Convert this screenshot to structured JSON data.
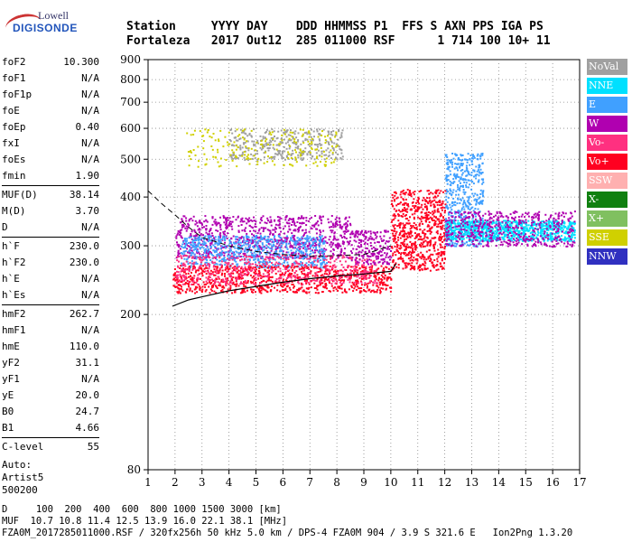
{
  "logo": {
    "line1": "Lowell",
    "line2": "DIGISONDE"
  },
  "header": {
    "labels": "Station     YYYY DAY    DDD HHMMSS P1  FFS S AXN PPS IGA PS",
    "values": "Fortaleza   2017 Out12  285 011000 RSF      1 714 100 10+ 11"
  },
  "params": [
    {
      "name": "foF2",
      "value": "10.300"
    },
    {
      "name": "foF1",
      "value": "N/A"
    },
    {
      "name": "foF1p",
      "value": "N/A"
    },
    {
      "name": "foE",
      "value": "N/A"
    },
    {
      "name": "foEp",
      "value": "0.40"
    },
    {
      "name": "fxI",
      "value": "N/A"
    },
    {
      "name": "foEs",
      "value": "N/A"
    },
    {
      "name": "fmin",
      "value": "1.90"
    },
    {
      "sep": true
    },
    {
      "name": "MUF(D)",
      "value": "38.14"
    },
    {
      "name": "M(D)",
      "value": "3.70"
    },
    {
      "name": "D",
      "value": "N/A"
    },
    {
      "sep": true
    },
    {
      "name": "h`F",
      "value": "230.0"
    },
    {
      "name": "h`F2",
      "value": "230.0"
    },
    {
      "name": "h`E",
      "value": "N/A"
    },
    {
      "name": "h`Es",
      "value": "N/A"
    },
    {
      "sep": true
    },
    {
      "name": "hmF2",
      "value": "262.7"
    },
    {
      "name": "hmF1",
      "value": "N/A"
    },
    {
      "name": "hmE",
      "value": "110.0"
    },
    {
      "name": "yF2",
      "value": "31.1"
    },
    {
      "name": "yF1",
      "value": "N/A"
    },
    {
      "name": "yE",
      "value": "20.0"
    },
    {
      "name": "B0",
      "value": "24.7"
    },
    {
      "name": "B1",
      "value": "4.66"
    },
    {
      "sep": true
    },
    {
      "name": "C-level",
      "value": "55"
    }
  ],
  "auto": {
    "line1": "Auto:",
    "line2": "Artist5",
    "line3": "500200"
  },
  "legend": [
    {
      "label": "NoVal",
      "color": "#a0a0a0"
    },
    {
      "label": "NNE",
      "color": "#00e0ff"
    },
    {
      "label": "E",
      "color": "#40a0ff"
    },
    {
      "label": "W",
      "color": "#b000b0"
    },
    {
      "label": "Vo-",
      "color": "#ff3080"
    },
    {
      "label": "Vo+",
      "color": "#ff0020"
    },
    {
      "label": "SSW",
      "color": "#ffb0b0"
    },
    {
      "label": "X-",
      "color": "#108010"
    },
    {
      "label": "X+",
      "color": "#80c060"
    },
    {
      "label": "SSE",
      "color": "#d0d000"
    },
    {
      "label": "NNW",
      "color": "#3030c0"
    }
  ],
  "footer": {
    "line1": "D     100  200  400  600  800 1000 1500 3000 [km]",
    "line2": "MUF  10.7 10.8 11.4 12.5 13.9 16.0 22.1 38.1 [MHz]",
    "line3": "FZA0M_2017285011000.RSF / 320fx256h 50 kHz 5.0 km / DPS-4 FZA0M 904 / 3.9 S 321.6 E   Ion2Png 1.3.20"
  },
  "chart_data": {
    "type": "scatter",
    "title": "",
    "xlabel": "",
    "ylabel": "",
    "xlim": [
      1,
      17
    ],
    "ylim": [
      80,
      900
    ],
    "yscale": "log",
    "xticks": [
      1,
      2,
      3,
      4,
      5,
      6,
      7,
      8,
      9,
      10,
      11,
      12,
      13,
      14,
      15,
      16,
      17
    ],
    "yticks": [
      80,
      200,
      300,
      400,
      500,
      600,
      700,
      800,
      900
    ],
    "grid": "dotted",
    "clusters": [
      {
        "name": "W",
        "xr": [
          2.0,
          8.5
        ],
        "yr": [
          280,
          360
        ],
        "n": 900,
        "color": "#b000b0"
      },
      {
        "name": "E",
        "xr": [
          2.2,
          7.6
        ],
        "yr": [
          265,
          320
        ],
        "n": 700,
        "color": "#40a0ff"
      },
      {
        "name": "Vo+",
        "xr": [
          1.9,
          10.0
        ],
        "yr": [
          228,
          268
        ],
        "n": 900,
        "color": "#ff0020"
      },
      {
        "name": "Vo-",
        "xr": [
          2.0,
          9.5
        ],
        "yr": [
          240,
          285
        ],
        "n": 500,
        "color": "#ff3080"
      },
      {
        "name": "W",
        "xr": [
          8.5,
          10.0
        ],
        "yr": [
          270,
          330
        ],
        "n": 200,
        "color": "#b000b0"
      },
      {
        "name": "Mixed",
        "xr": [
          10.0,
          12.0
        ],
        "yr": [
          260,
          420
        ],
        "n": 700,
        "color": "#ff0020"
      },
      {
        "name": "E",
        "xr": [
          12.0,
          13.4
        ],
        "yr": [
          300,
          520
        ],
        "n": 500,
        "color": "#40a0ff"
      },
      {
        "name": "NNE",
        "xr": [
          12.0,
          16.8
        ],
        "yr": [
          310,
          350
        ],
        "n": 900,
        "color": "#00e0ff"
      },
      {
        "name": "W",
        "xr": [
          12.0,
          16.8
        ],
        "yr": [
          300,
          370
        ],
        "n": 500,
        "color": "#b000b0"
      },
      {
        "name": "NoVal",
        "xr": [
          4.0,
          8.2
        ],
        "yr": [
          500,
          600
        ],
        "n": 350,
        "color": "#a0a0a0"
      },
      {
        "name": "SSE",
        "xr": [
          2.4,
          8.0
        ],
        "yr": [
          480,
          600
        ],
        "n": 200,
        "color": "#d0d000"
      }
    ],
    "trace": {
      "x": [
        1.9,
        2.5,
        3.0,
        4.0,
        5.0,
        6.0,
        7.0,
        8.0,
        9.0,
        9.5,
        10.0,
        10.2
      ],
      "y": [
        210,
        218,
        222,
        230,
        236,
        242,
        247,
        251,
        254,
        256,
        258,
        270
      ]
    },
    "dashed_trace": {
      "x": [
        1.0,
        1.5,
        2.0,
        2.5,
        3.0,
        4.0,
        5.0,
        6.0,
        7.0,
        8.0,
        9.0,
        10.0
      ],
      "y": [
        415,
        385,
        360,
        335,
        315,
        300,
        290,
        285,
        282,
        283,
        285,
        300
      ]
    }
  }
}
